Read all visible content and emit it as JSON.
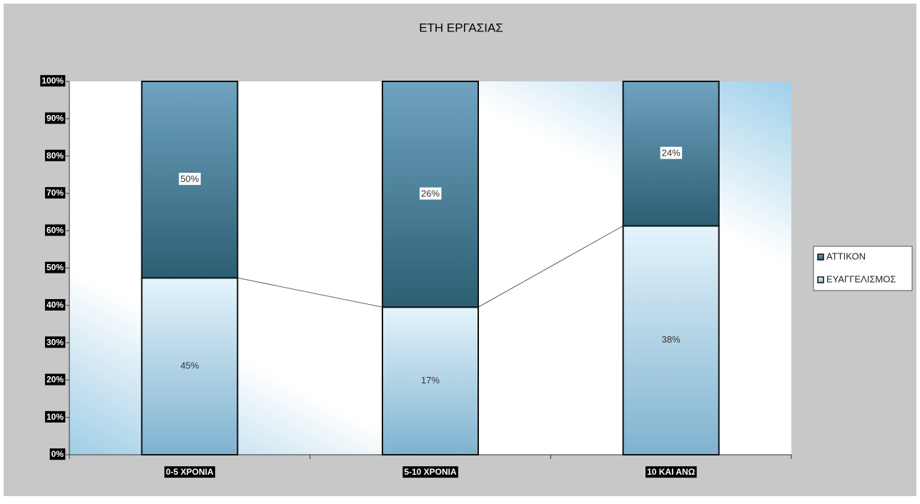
{
  "chart_data": {
    "type": "stacked_bar_100",
    "title": "ΕΤΗ ΕΡΓΑΣΙΑΣ",
    "categories": [
      "0-5 ΧΡΟΝΙΑ",
      "5-10 ΧΡΟΝΙΑ",
      "10 ΚΑΙ ΑΝΩ"
    ],
    "series": [
      {
        "name": "ΕΥΑΓΓΕΛΙΣΜΟΣ",
        "color": "#7fb2cf",
        "values": [
          45,
          17,
          38
        ],
        "value_labels": [
          "45%",
          "17%",
          "38%"
        ]
      },
      {
        "name": "ΑΤΤΙΚΟΝ",
        "color": "#2c5f73",
        "values": [
          50,
          26,
          24
        ],
        "value_labels": [
          "50%",
          "26%",
          "24%"
        ]
      }
    ],
    "ylim": [
      0,
      100
    ],
    "yticks": [
      {
        "value": 0,
        "label": "0%"
      },
      {
        "value": 10,
        "label": "10%"
      },
      {
        "value": 20,
        "label": "20%"
      },
      {
        "value": 30,
        "label": "30%"
      },
      {
        "value": 40,
        "label": "40%"
      },
      {
        "value": 50,
        "label": "50%"
      },
      {
        "value": 60,
        "label": "60%"
      },
      {
        "value": 70,
        "label": "70%"
      },
      {
        "value": 80,
        "label": "80%"
      },
      {
        "value": 90,
        "label": "90%"
      },
      {
        "value": 100,
        "label": "100%"
      }
    ],
    "series_lines": true,
    "legend": "right"
  }
}
